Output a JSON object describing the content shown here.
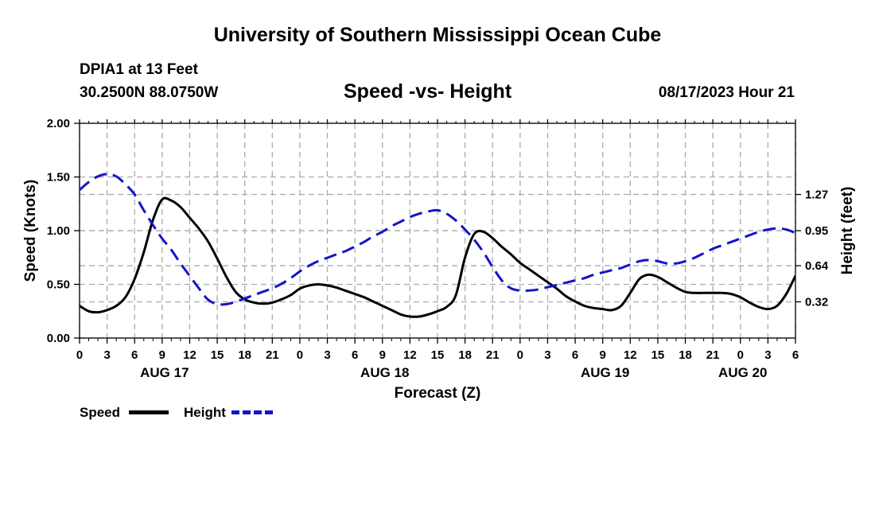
{
  "header": {
    "title": "University of Southern Mississippi Ocean Cube",
    "station": "DPIA1 at 13 Feet",
    "coords": "30.2500N  88.0750W",
    "subtitle": "Speed -vs- Height",
    "datetime": "08/17/2023 Hour 21"
  },
  "footer": {
    "title": "University of Southern Mississippi Ocean Cube"
  },
  "legend": {
    "speed_label": "Speed",
    "height_label": "Height"
  },
  "chart_data": {
    "type": "line",
    "title": "Speed -vs- Height",
    "xlabel": "Forecast (Z)",
    "ylabel": "Speed (Knots)",
    "y2label": "Height (feet)",
    "x_unit": "hours since Aug 17 00Z",
    "xlim": [
      0,
      78
    ],
    "ylim": [
      0,
      2
    ],
    "y2lim": [
      0.0,
      1.9
    ],
    "yticks": [
      "0.00",
      "0.50",
      "1.00",
      "1.50",
      "2.00"
    ],
    "y2ticks": [
      "0.32",
      "0.64",
      "0.95",
      "1.27"
    ],
    "xticks": [
      "0",
      "3",
      "6",
      "9",
      "12",
      "15",
      "18",
      "21",
      "0",
      "3",
      "6",
      "9",
      "12",
      "15",
      "18",
      "21",
      "0",
      "3",
      "6",
      "9",
      "12",
      "15",
      "18",
      "21",
      "0",
      "3",
      "6"
    ],
    "date_labels": [
      {
        "label": "AUG 17",
        "hour": 9
      },
      {
        "label": "AUG 18",
        "hour": 33
      },
      {
        "label": "AUG 19",
        "hour": 57
      },
      {
        "label": "AUG 20",
        "hour": 72
      }
    ],
    "grid": true,
    "series": [
      {
        "name": "Speed",
        "axis": "left",
        "color": "#000000",
        "style": "solid",
        "x": [
          0,
          1,
          2,
          3,
          4,
          5,
          6,
          7,
          8,
          9,
          10,
          11,
          12,
          13,
          14,
          15,
          16,
          17,
          18,
          19,
          20,
          21,
          22,
          23,
          24,
          25,
          26,
          27,
          28,
          29,
          30,
          31,
          32,
          33,
          34,
          35,
          36,
          37,
          38,
          39,
          40,
          41,
          42,
          43,
          44,
          45,
          46,
          47,
          48,
          49,
          50,
          51,
          52,
          53,
          54,
          55,
          56,
          57,
          58,
          59,
          60,
          61,
          62,
          63,
          64,
          65,
          66,
          67,
          68,
          69,
          70,
          71,
          72,
          73,
          74,
          75,
          76,
          77,
          78
        ],
        "values": [
          0.3,
          0.25,
          0.24,
          0.26,
          0.3,
          0.38,
          0.55,
          0.8,
          1.1,
          1.29,
          1.28,
          1.22,
          1.12,
          1.02,
          0.9,
          0.74,
          0.57,
          0.43,
          0.36,
          0.33,
          0.32,
          0.33,
          0.36,
          0.4,
          0.46,
          0.49,
          0.5,
          0.49,
          0.47,
          0.44,
          0.41,
          0.38,
          0.34,
          0.3,
          0.26,
          0.22,
          0.2,
          0.2,
          0.22,
          0.25,
          0.29,
          0.4,
          0.75,
          0.97,
          0.99,
          0.93,
          0.85,
          0.78,
          0.7,
          0.64,
          0.58,
          0.52,
          0.46,
          0.39,
          0.34,
          0.3,
          0.28,
          0.27,
          0.26,
          0.3,
          0.42,
          0.55,
          0.59,
          0.57,
          0.52,
          0.47,
          0.43,
          0.42,
          0.42,
          0.42,
          0.42,
          0.41,
          0.38,
          0.33,
          0.29,
          0.27,
          0.3,
          0.41,
          0.58
        ]
      },
      {
        "name": "Height",
        "axis": "right",
        "color": "#1414c8",
        "style": "dashed",
        "x": [
          0,
          1,
          2,
          3,
          4,
          5,
          6,
          7,
          8,
          9,
          10,
          11,
          12,
          13,
          14,
          15,
          16,
          17,
          18,
          19,
          20,
          21,
          22,
          23,
          24,
          25,
          26,
          27,
          28,
          29,
          30,
          31,
          32,
          33,
          34,
          35,
          36,
          37,
          38,
          39,
          40,
          41,
          42,
          43,
          44,
          45,
          46,
          47,
          48,
          49,
          50,
          51,
          52,
          53,
          54,
          55,
          56,
          57,
          58,
          59,
          60,
          61,
          62,
          63,
          64,
          65,
          66,
          67,
          68,
          69,
          70,
          71,
          72,
          73,
          74,
          75,
          76,
          77,
          78
        ],
        "values": [
          1.31,
          1.38,
          1.43,
          1.45,
          1.43,
          1.36,
          1.27,
          1.13,
          1.0,
          0.88,
          0.78,
          0.66,
          0.55,
          0.44,
          0.34,
          0.3,
          0.3,
          0.32,
          0.35,
          0.38,
          0.41,
          0.44,
          0.48,
          0.53,
          0.59,
          0.64,
          0.68,
          0.71,
          0.74,
          0.77,
          0.81,
          0.85,
          0.9,
          0.94,
          0.99,
          1.03,
          1.07,
          1.1,
          1.12,
          1.13,
          1.1,
          1.04,
          0.96,
          0.87,
          0.76,
          0.63,
          0.51,
          0.44,
          0.42,
          0.42,
          0.43,
          0.45,
          0.47,
          0.49,
          0.51,
          0.53,
          0.56,
          0.58,
          0.6,
          0.62,
          0.65,
          0.68,
          0.69,
          0.68,
          0.66,
          0.66,
          0.68,
          0.71,
          0.75,
          0.79,
          0.82,
          0.85,
          0.88,
          0.91,
          0.94,
          0.96,
          0.97,
          0.96,
          0.93
        ]
      }
    ]
  }
}
